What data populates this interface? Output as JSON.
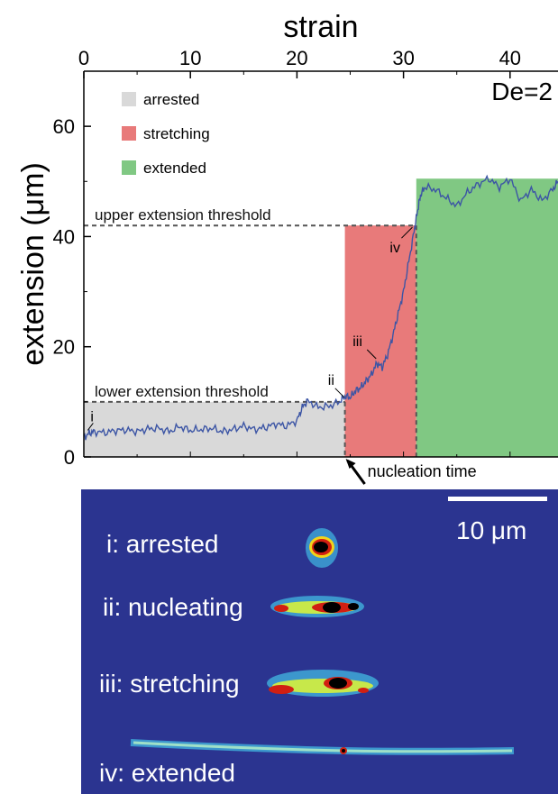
{
  "chart_data": {
    "type": "line",
    "top_axis": {
      "label": "strain",
      "ticks": [
        0,
        10,
        20,
        30,
        40
      ],
      "range": [
        0,
        44.5
      ]
    },
    "ylabel": "extension (μm)",
    "yticks": [
      0,
      20,
      40,
      60
    ],
    "ylim": [
      0,
      70
    ],
    "annotation_corner": "De=2",
    "legend_position": "top-left",
    "legend": [
      {
        "label": "arrested",
        "color": "#d9d9d9"
      },
      {
        "label": "stretching",
        "color": "#e87a7a"
      },
      {
        "label": "extended",
        "color": "#80c883"
      }
    ],
    "regions": [
      {
        "name": "arrested",
        "strain_start": 0,
        "strain_end": 24.5,
        "ymax": 10,
        "color": "#d9d9d9"
      },
      {
        "name": "stretching",
        "strain_start": 24.5,
        "strain_end": 31.2,
        "ymax": 42,
        "color": "#e87a7a"
      },
      {
        "name": "extended",
        "strain_start": 31.2,
        "strain_end": 44.5,
        "ymax": 50.5,
        "color": "#80c883"
      }
    ],
    "thresholds": [
      {
        "label": "upper extension threshold",
        "value": 42
      },
      {
        "label": "lower extension threshold",
        "value": 10
      }
    ],
    "marker_text": "nucleation time",
    "points": [
      {
        "label": "i",
        "strain": 0.2,
        "value": 4.5
      },
      {
        "label": "ii",
        "strain": 24.6,
        "value": 10.5
      },
      {
        "label": "iii",
        "strain": 27.6,
        "value": 17.5
      },
      {
        "label": "iv",
        "strain": 31.0,
        "value": 42
      }
    ],
    "series": [
      {
        "color": "#3c55a5",
        "x": [
          0,
          0.5,
          1,
          2,
          3,
          4,
          5,
          6,
          7,
          8,
          9,
          10,
          11,
          12,
          13,
          14,
          15,
          16,
          17,
          18,
          19,
          20,
          20.5,
          21,
          22,
          23,
          24,
          24.5,
          25,
          25.5,
          26,
          26.5,
          27,
          27.5,
          28,
          28.5,
          29,
          29.5,
          30,
          30.5,
          31,
          31.3,
          31.6,
          32,
          33,
          34,
          35,
          36,
          37,
          38,
          39,
          40,
          41,
          42,
          43,
          44,
          44.5
        ],
        "y": [
          3.5,
          4.3,
          4.6,
          4.4,
          4.8,
          4.9,
          4.6,
          5.1,
          5.2,
          4.6,
          5.5,
          4.8,
          5.0,
          5.2,
          4.6,
          5.0,
          5.6,
          5.0,
          5.3,
          6.0,
          5.6,
          6.6,
          9.0,
          10.2,
          9.0,
          9.2,
          10.0,
          11.0,
          10.8,
          12.0,
          12.6,
          13.8,
          15.0,
          17.0,
          16.3,
          18.5,
          22.0,
          26.0,
          30.0,
          35.5,
          41.0,
          44.5,
          47.5,
          49.0,
          48.5,
          47.0,
          45.5,
          48.0,
          49.5,
          50.5,
          49.0,
          50.5,
          46.5,
          48.5,
          46.5,
          48.5,
          50.0
        ]
      }
    ]
  },
  "micrograph": {
    "background": "#2b3490",
    "scale_label": "10 μm",
    "panel_labels": [
      "i: arrested",
      "ii: nucleating",
      "iii: stretching",
      "iv: extended"
    ]
  }
}
